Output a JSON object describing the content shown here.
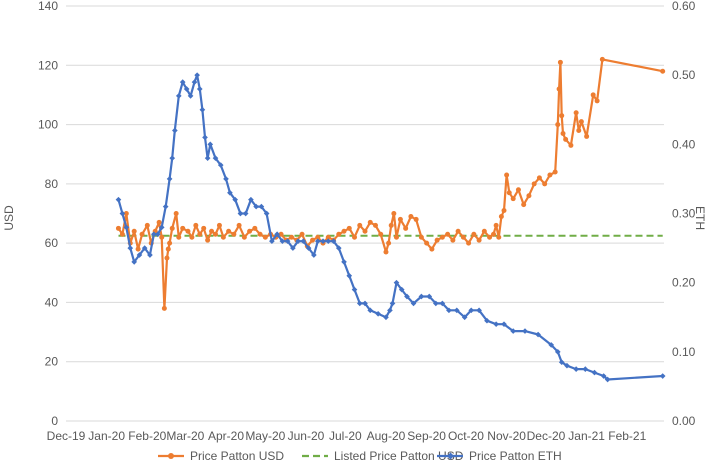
{
  "chart_data": {
    "type": "line",
    "title": "",
    "xlabel": "",
    "ylabel": "USD",
    "y2label": "ETH",
    "xlim": [
      "2019-12-01",
      "2021-03-01"
    ],
    "ylim": [
      0,
      140
    ],
    "y2lim": [
      0,
      0.6
    ],
    "x_tick_labels": [
      "Dec-19",
      "Jan-20",
      "Feb-20",
      "Mar-20",
      "Apr-20",
      "May-20",
      "Jun-20",
      "Jul-20",
      "Aug-20",
      "Sep-20",
      "Oct-20",
      "Nov-20",
      "Dec-20",
      "Jan-21",
      "Feb-21"
    ],
    "y_tick_labels": [
      "0",
      "20",
      "40",
      "60",
      "80",
      "100",
      "120",
      "140"
    ],
    "y2_tick_labels": [
      "0.00",
      "0.10",
      "0.20",
      "0.30",
      "0.40",
      "0.50",
      "0.60"
    ],
    "gridlines": "horizontal",
    "legend_position": "bottom",
    "colors": {
      "usd": "#ED7D31",
      "listed": "#70AD47",
      "eth": "#4472C4"
    },
    "series": [
      {
        "name": "Price Patton USD",
        "axis": "left",
        "color": "#ED7D31",
        "style": "line-markers",
        "x": [
          "2020-01-10",
          "2020-01-13",
          "2020-01-16",
          "2020-01-19",
          "2020-01-22",
          "2020-01-25",
          "2020-01-28",
          "2020-02-01",
          "2020-02-04",
          "2020-02-07",
          "2020-02-10",
          "2020-02-12",
          "2020-02-14",
          "2020-02-16",
          "2020-02-17",
          "2020-02-18",
          "2020-02-20",
          "2020-02-23",
          "2020-02-25",
          "2020-02-28",
          "2020-03-03",
          "2020-03-06",
          "2020-03-09",
          "2020-03-12",
          "2020-03-15",
          "2020-03-18",
          "2020-03-21",
          "2020-03-24",
          "2020-03-27",
          "2020-03-30",
          "2020-04-03",
          "2020-04-07",
          "2020-04-11",
          "2020-04-15",
          "2020-04-19",
          "2020-04-23",
          "2020-04-27",
          "2020-05-01",
          "2020-05-05",
          "2020-05-09",
          "2020-05-13",
          "2020-05-17",
          "2020-05-21",
          "2020-05-25",
          "2020-05-29",
          "2020-06-02",
          "2020-06-06",
          "2020-06-10",
          "2020-06-14",
          "2020-06-18",
          "2020-06-22",
          "2020-06-26",
          "2020-06-30",
          "2020-07-04",
          "2020-07-08",
          "2020-07-12",
          "2020-07-16",
          "2020-07-20",
          "2020-07-24",
          "2020-07-28",
          "2020-08-01",
          "2020-08-03",
          "2020-08-05",
          "2020-08-07",
          "2020-08-09",
          "2020-08-12",
          "2020-08-16",
          "2020-08-20",
          "2020-08-24",
          "2020-08-28",
          "2020-09-01",
          "2020-09-05",
          "2020-09-09",
          "2020-09-13",
          "2020-09-17",
          "2020-09-21",
          "2020-09-25",
          "2020-09-29",
          "2020-10-03",
          "2020-10-07",
          "2020-10-11",
          "2020-10-15",
          "2020-10-19",
          "2020-10-22",
          "2020-10-24",
          "2020-10-26",
          "2020-10-28",
          "2020-10-30",
          "2020-11-01",
          "2020-11-03",
          "2020-11-06",
          "2020-11-10",
          "2020-11-14",
          "2020-11-18",
          "2020-11-22",
          "2020-11-26",
          "2020-11-30",
          "2020-12-04",
          "2020-12-08",
          "2020-12-10",
          "2020-12-11",
          "2020-12-12",
          "2020-12-13",
          "2020-12-14",
          "2020-12-16",
          "2020-12-20",
          "2020-12-24",
          "2020-12-26",
          "2020-12-28",
          "2021-01-01",
          "2021-01-06",
          "2021-01-09",
          "2021-01-13",
          "2021-02-28"
        ],
        "values": [
          65,
          63,
          70,
          60,
          64,
          58,
          63,
          66,
          60,
          64,
          67,
          62,
          38,
          55,
          58,
          60,
          65,
          70,
          62,
          65,
          64,
          62,
          66,
          63,
          65,
          61,
          64,
          63,
          66,
          62,
          64,
          63,
          66,
          62,
          64,
          65,
          63,
          62,
          63,
          62,
          63,
          61,
          62,
          61,
          63,
          59,
          61,
          62,
          60,
          62,
          61,
          63,
          64,
          65,
          62,
          66,
          64,
          67,
          66,
          63,
          57,
          60,
          66,
          70,
          62,
          68,
          65,
          69,
          68,
          62,
          60,
          58,
          61,
          62,
          63,
          61,
          64,
          62,
          60,
          63,
          61,
          64,
          62,
          63,
          66,
          62,
          69,
          71,
          83,
          77,
          75,
          78,
          73,
          76,
          80,
          82,
          80,
          83,
          84,
          100,
          112,
          121,
          103,
          97,
          95,
          93,
          104,
          98,
          101,
          96,
          110,
          108,
          122,
          118
        ]
      },
      {
        "name": "Listed Price Patton USD",
        "axis": "left",
        "color": "#70AD47",
        "style": "dashed",
        "x": [
          "2020-01-10",
          "2021-02-28"
        ],
        "values": [
          62.5,
          62.5
        ]
      },
      {
        "name": "Price Patton ETH",
        "axis": "right",
        "color": "#4472C4",
        "style": "line-markers",
        "x": [
          "2020-01-10",
          "2020-01-13",
          "2020-01-16",
          "2020-01-19",
          "2020-01-22",
          "2020-01-26",
          "2020-01-30",
          "2020-02-03",
          "2020-02-06",
          "2020-02-09",
          "2020-02-12",
          "2020-02-15",
          "2020-02-18",
          "2020-02-20",
          "2020-02-22",
          "2020-02-25",
          "2020-02-28",
          "2020-03-02",
          "2020-03-05",
          "2020-03-08",
          "2020-03-10",
          "2020-03-12",
          "2020-03-14",
          "2020-03-16",
          "2020-03-18",
          "2020-03-20",
          "2020-03-24",
          "2020-03-28",
          "2020-04-01",
          "2020-04-04",
          "2020-04-08",
          "2020-04-12",
          "2020-04-16",
          "2020-04-20",
          "2020-04-24",
          "2020-04-28",
          "2020-05-02",
          "2020-05-06",
          "2020-05-10",
          "2020-05-14",
          "2020-05-18",
          "2020-05-22",
          "2020-05-26",
          "2020-05-30",
          "2020-06-03",
          "2020-06-07",
          "2020-06-10",
          "2020-06-14",
          "2020-06-18",
          "2020-06-22",
          "2020-06-26",
          "2020-06-30",
          "2020-07-04",
          "2020-07-08",
          "2020-07-12",
          "2020-07-16",
          "2020-07-20",
          "2020-07-26",
          "2020-08-01",
          "2020-08-04",
          "2020-08-06",
          "2020-08-09",
          "2020-08-13",
          "2020-08-17",
          "2020-08-22",
          "2020-08-28",
          "2020-09-03",
          "2020-09-08",
          "2020-09-13",
          "2020-09-18",
          "2020-09-24",
          "2020-09-30",
          "2020-10-05",
          "2020-10-11",
          "2020-10-17",
          "2020-10-24",
          "2020-10-30",
          "2020-11-06",
          "2020-11-15",
          "2020-11-25",
          "2020-12-05",
          "2020-12-10",
          "2020-12-13",
          "2020-12-17",
          "2020-12-24",
          "2020-12-31",
          "2021-01-07",
          "2021-01-14",
          "2021-01-17",
          "2021-02-28"
        ],
        "values": [
          0.32,
          0.3,
          0.28,
          0.25,
          0.23,
          0.24,
          0.25,
          0.24,
          0.27,
          0.27,
          0.28,
          0.31,
          0.35,
          0.38,
          0.42,
          0.47,
          0.49,
          0.48,
          0.47,
          0.49,
          0.5,
          0.48,
          0.45,
          0.41,
          0.38,
          0.4,
          0.38,
          0.37,
          0.35,
          0.33,
          0.32,
          0.3,
          0.3,
          0.32,
          0.31,
          0.31,
          0.3,
          0.26,
          0.27,
          0.26,
          0.26,
          0.25,
          0.26,
          0.26,
          0.25,
          0.24,
          0.26,
          0.26,
          0.26,
          0.26,
          0.25,
          0.23,
          0.21,
          0.19,
          0.17,
          0.17,
          0.16,
          0.155,
          0.15,
          0.16,
          0.17,
          0.2,
          0.19,
          0.18,
          0.17,
          0.18,
          0.18,
          0.17,
          0.17,
          0.16,
          0.16,
          0.15,
          0.16,
          0.16,
          0.145,
          0.14,
          0.14,
          0.13,
          0.13,
          0.125,
          0.11,
          0.1,
          0.085,
          0.08,
          0.075,
          0.075,
          0.07,
          0.065,
          0.06,
          0.065
        ]
      }
    ]
  }
}
